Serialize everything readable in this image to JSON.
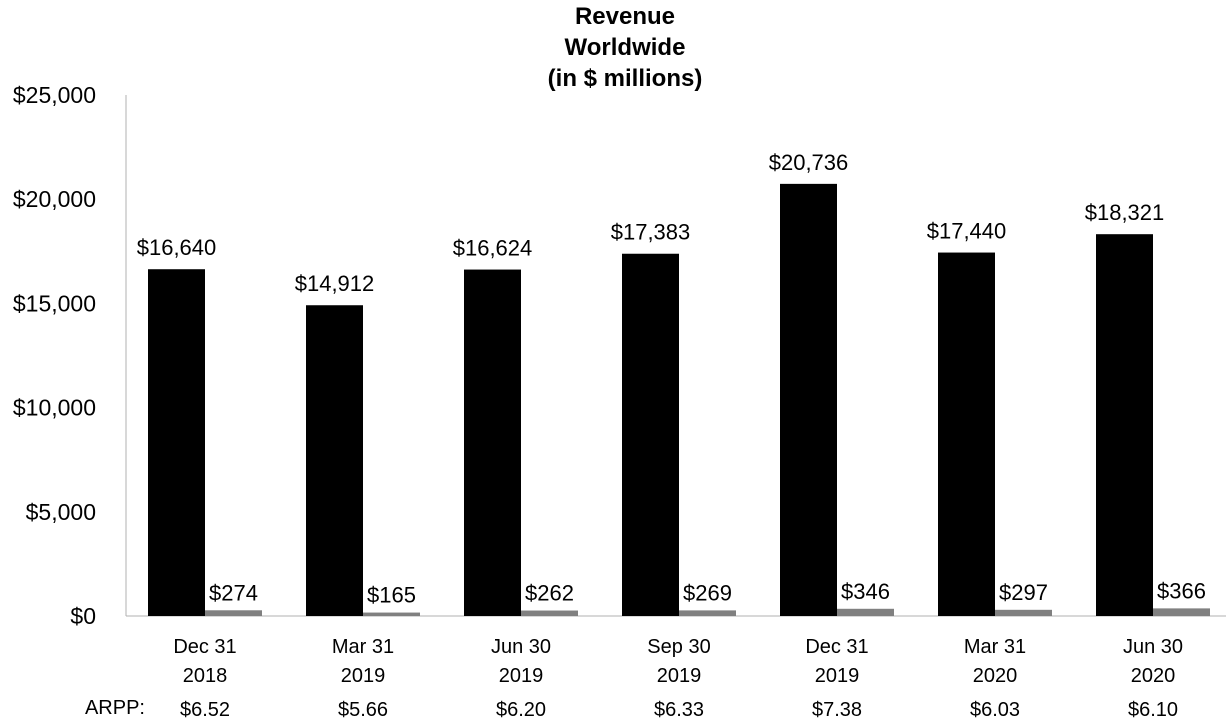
{
  "chart_data": {
    "type": "bar",
    "title": [
      "Revenue",
      "Worldwide",
      "(in $ millions)"
    ],
    "xlabel": "",
    "ylabel": "",
    "ylim": [
      0,
      25000
    ],
    "yticks": [
      0,
      5000,
      10000,
      15000,
      20000,
      25000
    ],
    "ytick_labels": [
      "$0",
      "$5,000",
      "$10,000",
      "$15,000",
      "$20,000",
      "$25,000"
    ],
    "grid": false,
    "legend": "none",
    "categories": [
      [
        "Dec 31",
        "2018"
      ],
      [
        "Mar 31",
        "2019"
      ],
      [
        "Jun 30",
        "2019"
      ],
      [
        "Sep 30",
        "2019"
      ],
      [
        "Dec 31",
        "2019"
      ],
      [
        "Mar 31",
        "2020"
      ],
      [
        "Jun 30",
        "2020"
      ]
    ],
    "series": [
      {
        "color": "#000000",
        "values": [
          16640,
          14912,
          16624,
          17383,
          20736,
          17440,
          18321
        ],
        "labels": [
          "$16,640",
          "$14,912",
          "$16,624",
          "$17,383",
          "$20,736",
          "$17,440",
          "$18,321"
        ]
      },
      {
        "color": "#808080",
        "values": [
          274,
          165,
          262,
          269,
          346,
          297,
          366
        ],
        "labels": [
          "$274",
          "$165",
          "$262",
          "$269",
          "$346",
          "$297",
          "$366"
        ]
      }
    ],
    "arpp_label": "ARPP:",
    "arpp_values": [
      "$6.52",
      "$5.66",
      "$6.20",
      "$6.33",
      "$7.38",
      "$6.03",
      "$6.10"
    ]
  }
}
